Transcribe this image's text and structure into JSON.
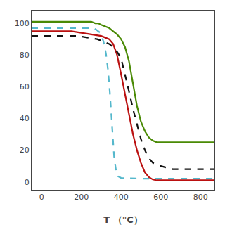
{
  "chart_data": {
    "type": "line",
    "x_label": "T （°C）",
    "xlim": [
      -50,
      870
    ],
    "ylim": [
      -5,
      108
    ],
    "xticks": [
      0,
      200,
      400,
      600,
      800
    ],
    "yticks": [
      0,
      20,
      40,
      60,
      80,
      100
    ],
    "grid": false,
    "series": [
      {
        "color": "#55b8cc",
        "line_style": "dashed",
        "x": [
          -50,
          0,
          50,
          100,
          150,
          200,
          240,
          260,
          275,
          285,
          295,
          305,
          315,
          325,
          335,
          345,
          355,
          365,
          375,
          385,
          400,
          500,
          600,
          700,
          800,
          870
        ],
        "values": [
          97,
          97,
          97,
          97,
          97,
          97,
          97,
          97,
          96,
          95,
          94,
          91,
          87,
          80,
          70,
          54,
          34,
          16,
          7,
          3.5,
          2.5,
          2,
          2,
          2,
          2,
          2
        ]
      },
      {
        "color": "#4a8a05",
        "line_style": "solid",
        "x": [
          -50,
          0,
          30,
          60,
          100,
          150,
          200,
          250,
          270,
          285,
          300,
          320,
          340,
          360,
          380,
          400,
          420,
          440,
          460,
          480,
          500,
          520,
          540,
          560,
          580,
          600,
          630,
          660,
          700,
          750,
          800,
          850,
          870
        ],
        "values": [
          101,
          101,
          101,
          101,
          101,
          101,
          101,
          101,
          100,
          100,
          99,
          98,
          97,
          95,
          93,
          90,
          85,
          76,
          62,
          48,
          38,
          32,
          28,
          26,
          25,
          25,
          25,
          25,
          25,
          25,
          25,
          25,
          25
        ]
      },
      {
        "color": "#bb1111",
        "line_style": "solid",
        "x": [
          -50,
          0,
          50,
          100,
          150,
          200,
          250,
          300,
          320,
          340,
          360,
          380,
          400,
          420,
          440,
          460,
          480,
          500,
          520,
          540,
          560,
          580,
          600,
          630,
          660,
          700,
          750,
          800,
          850,
          870
        ],
        "values": [
          95,
          95,
          95,
          95,
          95,
          94,
          93,
          92,
          91,
          90,
          87,
          80,
          68,
          55,
          42,
          30,
          20,
          12,
          6,
          3,
          1.5,
          1,
          1,
          1,
          1,
          1,
          1,
          1,
          1,
          1
        ]
      },
      {
        "color": "#111111",
        "line_style": "dashed",
        "x": [
          -50,
          0,
          30,
          80,
          130,
          180,
          230,
          280,
          300,
          320,
          340,
          360,
          380,
          400,
          420,
          440,
          460,
          480,
          500,
          520,
          540,
          560,
          580,
          600,
          630,
          660,
          700,
          750,
          800,
          850,
          870
        ],
        "values": [
          92,
          92,
          92,
          92,
          92,
          92,
          91,
          90,
          89,
          88,
          87,
          85,
          82,
          78,
          68,
          57,
          46,
          36,
          27,
          20,
          15,
          12,
          11,
          10,
          9,
          8,
          8,
          8,
          8,
          8,
          8
        ]
      }
    ]
  }
}
